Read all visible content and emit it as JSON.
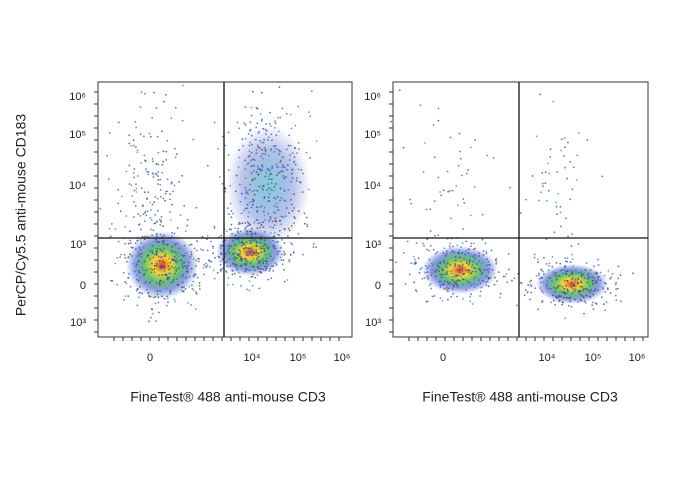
{
  "figure": {
    "panels": [
      {
        "y_axis_label": "PerCP/Cy5.5 anti-mouse CD183",
        "y_tick_labels": [
          "10⁶",
          "10⁵",
          "10⁴",
          "10³",
          "0",
          "10³"
        ],
        "x_tick_labels": [
          "0",
          "10⁴",
          "10⁵",
          "10⁶"
        ],
        "x_axis_label": "FineTest® 488 anti-mouse CD3"
      },
      {
        "y_tick_labels": [
          "10⁶",
          "10⁵",
          "10⁴",
          "10³",
          "0",
          "10³"
        ],
        "x_tick_labels": [
          "0",
          "10⁴",
          "10⁵",
          "10⁶"
        ],
        "x_axis_label": "FineTest® 488 anti-mouse CD3"
      }
    ]
  }
}
